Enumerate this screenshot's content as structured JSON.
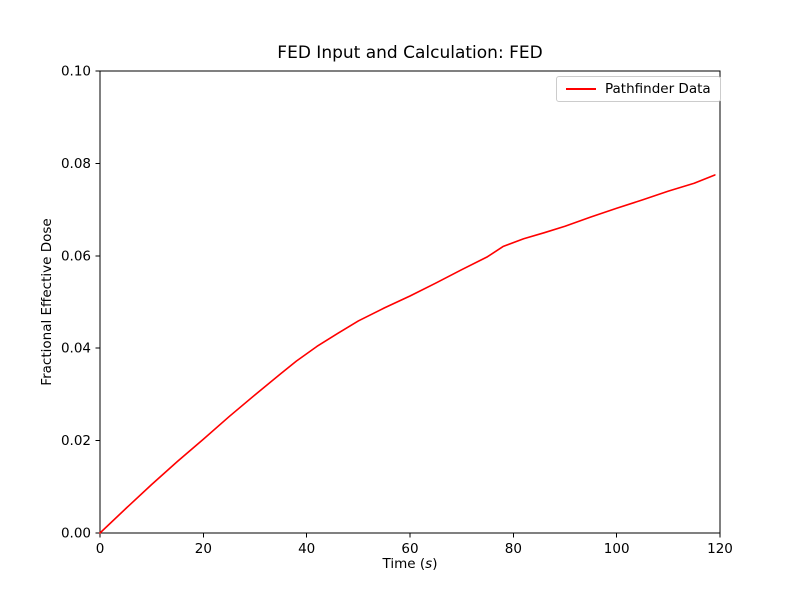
{
  "chart": {
    "title": "FED Input and Calculation: FED",
    "xlabel_prefix": "Time (",
    "xlabel_var": "s",
    "xlabel_suffix": ")",
    "ylabel": "Fractional Effective Dose",
    "legend_label": "Pathfinder Data"
  },
  "chart_data": {
    "type": "line",
    "title": "FED Input and Calculation: FED",
    "xlabel": "Time (s)",
    "ylabel": "Fractional Effective Dose",
    "xlim": [
      0,
      120
    ],
    "ylim": [
      0,
      0.1
    ],
    "xticks": [
      0,
      20,
      40,
      60,
      80,
      100,
      120
    ],
    "xtick_labels": [
      "0",
      "20",
      "40",
      "60",
      "80",
      "100",
      "120"
    ],
    "yticks": [
      0,
      0.02,
      0.04,
      0.06,
      0.08,
      0.1
    ],
    "ytick_labels": [
      "0.00",
      "0.02",
      "0.04",
      "0.06",
      "0.08",
      "0.10"
    ],
    "grid": false,
    "legend_position": "upper right",
    "background": "#ffffff",
    "series": [
      {
        "name": "Pathfinder Data",
        "color": "#ff0000",
        "x": [
          0,
          5,
          10,
          15,
          20,
          25,
          30,
          35,
          38,
          42,
          46,
          50,
          55,
          60,
          65,
          70,
          75,
          78,
          82,
          86,
          90,
          95,
          100,
          105,
          110,
          115,
          119
        ],
        "y": [
          0.0,
          0.0053,
          0.0105,
          0.0155,
          0.0203,
          0.0252,
          0.0299,
          0.0345,
          0.0372,
          0.0404,
          0.0432,
          0.0459,
          0.0487,
          0.0513,
          0.0541,
          0.057,
          0.0598,
          0.062,
          0.0637,
          0.065,
          0.0664,
          0.0684,
          0.0703,
          0.0721,
          0.074,
          0.0757,
          0.0775
        ]
      }
    ]
  }
}
